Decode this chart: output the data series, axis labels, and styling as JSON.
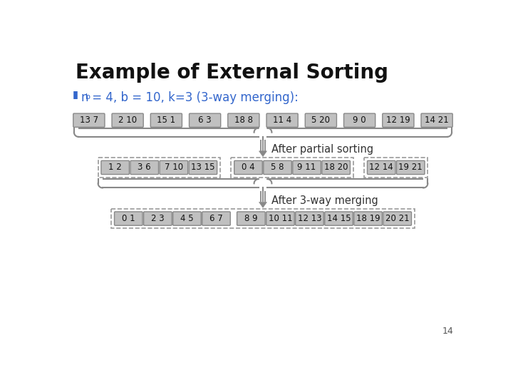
{
  "title": "Example of External Sorting",
  "row1_pairs": [
    "13 7",
    "2 10",
    "15 1",
    "6 3",
    "18 8",
    "11 4",
    "5 20",
    "9 0",
    "12 19",
    "14 21"
  ],
  "row2_groups": [
    [
      "1 2",
      "3 6",
      "7 10",
      "13 15"
    ],
    [
      "0 4",
      "5 8",
      "9 11",
      "18 20"
    ],
    [
      "12 14",
      "19 21"
    ]
  ],
  "row3_pairs": [
    "0 1",
    "2 3",
    "4 5",
    "6 7",
    "8 9",
    "10 11",
    "12 13",
    "14 15",
    "18 19",
    "20 21"
  ],
  "label_after_partial": "After partial sorting",
  "label_after_merging": "After 3-way merging",
  "page_num": "14",
  "bg_color": "#ffffff",
  "box_fill": "#c0c0c0",
  "box_edge": "#888888",
  "dashed_box_color": "#999999",
  "brace_color": "#888888",
  "arrow_color": "#777777",
  "arrow_fill": "#888888",
  "title_color": "#111111",
  "subtitle_color": "#3366cc",
  "bullet_color": "#3366cc",
  "label_color": "#333333",
  "page_color": "#555555"
}
